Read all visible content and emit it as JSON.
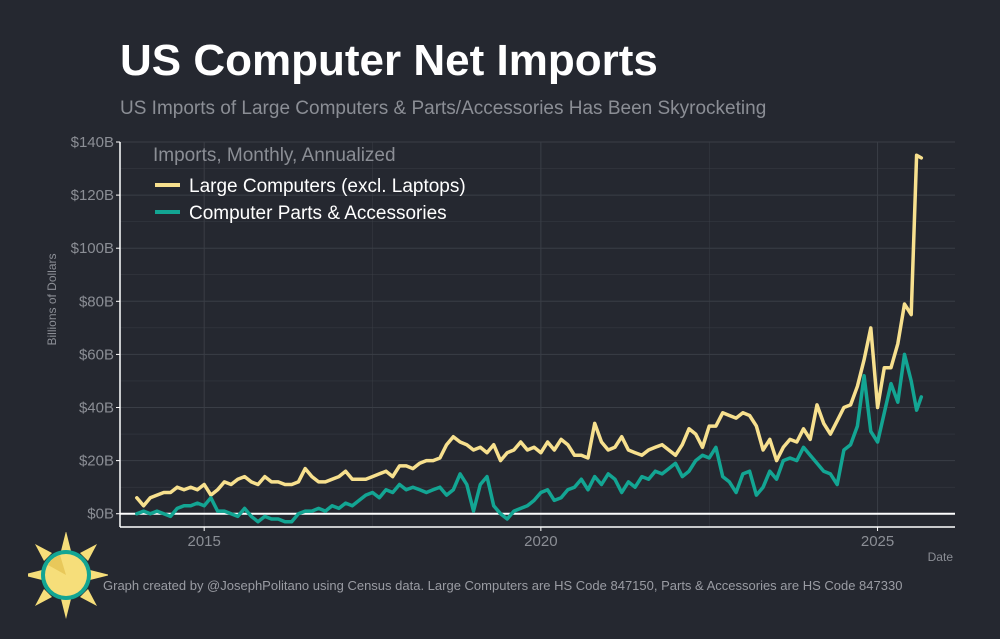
{
  "title": "US Computer Net Imports",
  "subtitle": "US Imports of Large Computers & Parts/Accessories Has Been Skyrocketing",
  "caption": "Graph created by @JosephPolitano using Census data. Large Computers are HS Code 847150, Parts & Accessories are HS Code 847330",
  "colors": {
    "background": "#252830",
    "large": "#f7e08e",
    "parts": "#13a593",
    "grid": "#3a3e46",
    "text": "#8b8e95"
  },
  "chart_data": {
    "type": "line",
    "ylabel": "Billions of Dollars",
    "xlabel": "Date",
    "legend_title": "Imports, Monthly, Annualized",
    "legend_position": "top-left",
    "grid": true,
    "xlim": [
      2013.75,
      2026.15
    ],
    "ylim": [
      -5,
      140
    ],
    "x_ticks": [
      2015,
      2020,
      2025
    ],
    "x_tick_labels": [
      "2015",
      "2020",
      "2025"
    ],
    "y_ticks": [
      0,
      20,
      40,
      60,
      80,
      100,
      120,
      140
    ],
    "y_tick_labels": [
      "$0B",
      "$20B",
      "$40B",
      "$60B",
      "$80B",
      "$100B",
      "$120B",
      "$140B"
    ],
    "series": [
      {
        "name": "Large Computers (excl. Laptops)",
        "color": "#f7e08e",
        "points": [
          [
            2014.0,
            6
          ],
          [
            2014.1,
            3
          ],
          [
            2014.2,
            6
          ],
          [
            2014.3,
            7
          ],
          [
            2014.4,
            8
          ],
          [
            2014.5,
            8
          ],
          [
            2014.6,
            10
          ],
          [
            2014.7,
            9
          ],
          [
            2014.8,
            10
          ],
          [
            2014.9,
            9
          ],
          [
            2015.0,
            11
          ],
          [
            2015.1,
            7
          ],
          [
            2015.2,
            9
          ],
          [
            2015.3,
            12
          ],
          [
            2015.4,
            11
          ],
          [
            2015.5,
            13
          ],
          [
            2015.6,
            14
          ],
          [
            2015.7,
            12
          ],
          [
            2015.8,
            11
          ],
          [
            2015.9,
            14
          ],
          [
            2016.0,
            12
          ],
          [
            2016.1,
            12
          ],
          [
            2016.2,
            11
          ],
          [
            2016.3,
            11
          ],
          [
            2016.4,
            12
          ],
          [
            2016.5,
            17
          ],
          [
            2016.6,
            14
          ],
          [
            2016.7,
            12
          ],
          [
            2016.8,
            12
          ],
          [
            2016.9,
            13
          ],
          [
            2017.0,
            14
          ],
          [
            2017.1,
            16
          ],
          [
            2017.2,
            13
          ],
          [
            2017.3,
            13
          ],
          [
            2017.4,
            13
          ],
          [
            2017.5,
            14
          ],
          [
            2017.6,
            15
          ],
          [
            2017.7,
            16
          ],
          [
            2017.8,
            14
          ],
          [
            2017.9,
            18
          ],
          [
            2018.0,
            18
          ],
          [
            2018.1,
            17
          ],
          [
            2018.2,
            19
          ],
          [
            2018.3,
            20
          ],
          [
            2018.4,
            20
          ],
          [
            2018.5,
            21
          ],
          [
            2018.6,
            26
          ],
          [
            2018.7,
            29
          ],
          [
            2018.8,
            27
          ],
          [
            2018.9,
            26
          ],
          [
            2019.0,
            24
          ],
          [
            2019.1,
            25
          ],
          [
            2019.2,
            23
          ],
          [
            2019.3,
            26
          ],
          [
            2019.4,
            20
          ],
          [
            2019.5,
            23
          ],
          [
            2019.6,
            24
          ],
          [
            2019.7,
            27
          ],
          [
            2019.8,
            24
          ],
          [
            2019.9,
            25
          ],
          [
            2020.0,
            23
          ],
          [
            2020.1,
            27
          ],
          [
            2020.2,
            24
          ],
          [
            2020.3,
            28
          ],
          [
            2020.4,
            26
          ],
          [
            2020.5,
            22
          ],
          [
            2020.6,
            22
          ],
          [
            2020.7,
            21
          ],
          [
            2020.8,
            34
          ],
          [
            2020.9,
            27
          ],
          [
            2021.0,
            24
          ],
          [
            2021.1,
            25
          ],
          [
            2021.2,
            29
          ],
          [
            2021.3,
            24
          ],
          [
            2021.4,
            23
          ],
          [
            2021.5,
            22
          ],
          [
            2021.6,
            24
          ],
          [
            2021.7,
            25
          ],
          [
            2021.8,
            26
          ],
          [
            2021.9,
            24
          ],
          [
            2022.0,
            22
          ],
          [
            2022.1,
            26
          ],
          [
            2022.2,
            32
          ],
          [
            2022.3,
            30
          ],
          [
            2022.4,
            25
          ],
          [
            2022.5,
            33
          ],
          [
            2022.6,
            33
          ],
          [
            2022.7,
            38
          ],
          [
            2022.8,
            37
          ],
          [
            2022.9,
            36
          ],
          [
            2023.0,
            38
          ],
          [
            2023.1,
            37
          ],
          [
            2023.2,
            33
          ],
          [
            2023.3,
            24
          ],
          [
            2023.4,
            28
          ],
          [
            2023.5,
            20
          ],
          [
            2023.6,
            25
          ],
          [
            2023.7,
            28
          ],
          [
            2023.8,
            27
          ],
          [
            2023.9,
            32
          ],
          [
            2024.0,
            28
          ],
          [
            2024.1,
            41
          ],
          [
            2024.2,
            34
          ],
          [
            2024.3,
            30
          ],
          [
            2024.4,
            35
          ],
          [
            2024.5,
            40
          ],
          [
            2024.6,
            41
          ],
          [
            2024.7,
            48
          ],
          [
            2024.8,
            58
          ],
          [
            2024.9,
            70
          ],
          [
            2025.0,
            40
          ],
          [
            2025.1,
            55
          ],
          [
            2025.2,
            55
          ],
          [
            2025.3,
            64
          ],
          [
            2025.4,
            79
          ],
          [
            2025.5,
            75
          ],
          [
            2025.58,
            135
          ],
          [
            2025.65,
            134
          ]
        ]
      },
      {
        "name": "Computer Parts & Accessories",
        "color": "#13a593",
        "points": [
          [
            2014.0,
            0
          ],
          [
            2014.1,
            1
          ],
          [
            2014.2,
            0
          ],
          [
            2014.3,
            1
          ],
          [
            2014.4,
            0
          ],
          [
            2014.5,
            -1
          ],
          [
            2014.6,
            2
          ],
          [
            2014.7,
            3
          ],
          [
            2014.8,
            3
          ],
          [
            2014.9,
            4
          ],
          [
            2015.0,
            3
          ],
          [
            2015.1,
            6
          ],
          [
            2015.2,
            1
          ],
          [
            2015.3,
            1
          ],
          [
            2015.4,
            0
          ],
          [
            2015.5,
            -1
          ],
          [
            2015.6,
            2
          ],
          [
            2015.7,
            -1
          ],
          [
            2015.8,
            -3
          ],
          [
            2015.9,
            -1
          ],
          [
            2016.0,
            -2
          ],
          [
            2016.1,
            -2
          ],
          [
            2016.2,
            -3
          ],
          [
            2016.3,
            -3
          ],
          [
            2016.4,
            0
          ],
          [
            2016.5,
            1
          ],
          [
            2016.6,
            1
          ],
          [
            2016.7,
            2
          ],
          [
            2016.8,
            1
          ],
          [
            2016.9,
            3
          ],
          [
            2017.0,
            2
          ],
          [
            2017.1,
            4
          ],
          [
            2017.2,
            3
          ],
          [
            2017.3,
            5
          ],
          [
            2017.4,
            7
          ],
          [
            2017.5,
            8
          ],
          [
            2017.6,
            6
          ],
          [
            2017.7,
            9
          ],
          [
            2017.8,
            8
          ],
          [
            2017.9,
            11
          ],
          [
            2018.0,
            9
          ],
          [
            2018.1,
            10
          ],
          [
            2018.2,
            9
          ],
          [
            2018.3,
            8
          ],
          [
            2018.4,
            9
          ],
          [
            2018.5,
            10
          ],
          [
            2018.6,
            7
          ],
          [
            2018.7,
            9
          ],
          [
            2018.8,
            15
          ],
          [
            2018.9,
            11
          ],
          [
            2019.0,
            1
          ],
          [
            2019.1,
            11
          ],
          [
            2019.2,
            14
          ],
          [
            2019.3,
            3
          ],
          [
            2019.4,
            0
          ],
          [
            2019.5,
            -2
          ],
          [
            2019.6,
            1
          ],
          [
            2019.7,
            2
          ],
          [
            2019.8,
            3
          ],
          [
            2019.9,
            5
          ],
          [
            2020.0,
            8
          ],
          [
            2020.1,
            9
          ],
          [
            2020.2,
            5
          ],
          [
            2020.3,
            6
          ],
          [
            2020.4,
            9
          ],
          [
            2020.5,
            10
          ],
          [
            2020.6,
            13
          ],
          [
            2020.7,
            9
          ],
          [
            2020.8,
            14
          ],
          [
            2020.9,
            11
          ],
          [
            2021.0,
            15
          ],
          [
            2021.1,
            13
          ],
          [
            2021.2,
            8
          ],
          [
            2021.3,
            12
          ],
          [
            2021.4,
            10
          ],
          [
            2021.5,
            14
          ],
          [
            2021.6,
            13
          ],
          [
            2021.7,
            16
          ],
          [
            2021.8,
            15
          ],
          [
            2021.9,
            17
          ],
          [
            2022.0,
            19
          ],
          [
            2022.1,
            14
          ],
          [
            2022.2,
            16
          ],
          [
            2022.3,
            20
          ],
          [
            2022.4,
            22
          ],
          [
            2022.5,
            21
          ],
          [
            2022.6,
            25
          ],
          [
            2022.7,
            14
          ],
          [
            2022.8,
            12
          ],
          [
            2022.9,
            8
          ],
          [
            2023.0,
            15
          ],
          [
            2023.1,
            16
          ],
          [
            2023.2,
            7
          ],
          [
            2023.3,
            10
          ],
          [
            2023.4,
            16
          ],
          [
            2023.5,
            13
          ],
          [
            2023.6,
            20
          ],
          [
            2023.7,
            21
          ],
          [
            2023.8,
            20
          ],
          [
            2023.9,
            25
          ],
          [
            2024.0,
            22
          ],
          [
            2024.1,
            19
          ],
          [
            2024.2,
            16
          ],
          [
            2024.3,
            15
          ],
          [
            2024.4,
            11
          ],
          [
            2024.5,
            24
          ],
          [
            2024.6,
            26
          ],
          [
            2024.7,
            33
          ],
          [
            2024.8,
            52
          ],
          [
            2024.9,
            31
          ],
          [
            2025.0,
            27
          ],
          [
            2025.1,
            38
          ],
          [
            2025.2,
            49
          ],
          [
            2025.3,
            42
          ],
          [
            2025.4,
            60
          ],
          [
            2025.5,
            50
          ],
          [
            2025.58,
            39
          ],
          [
            2025.65,
            44
          ]
        ]
      }
    ]
  }
}
